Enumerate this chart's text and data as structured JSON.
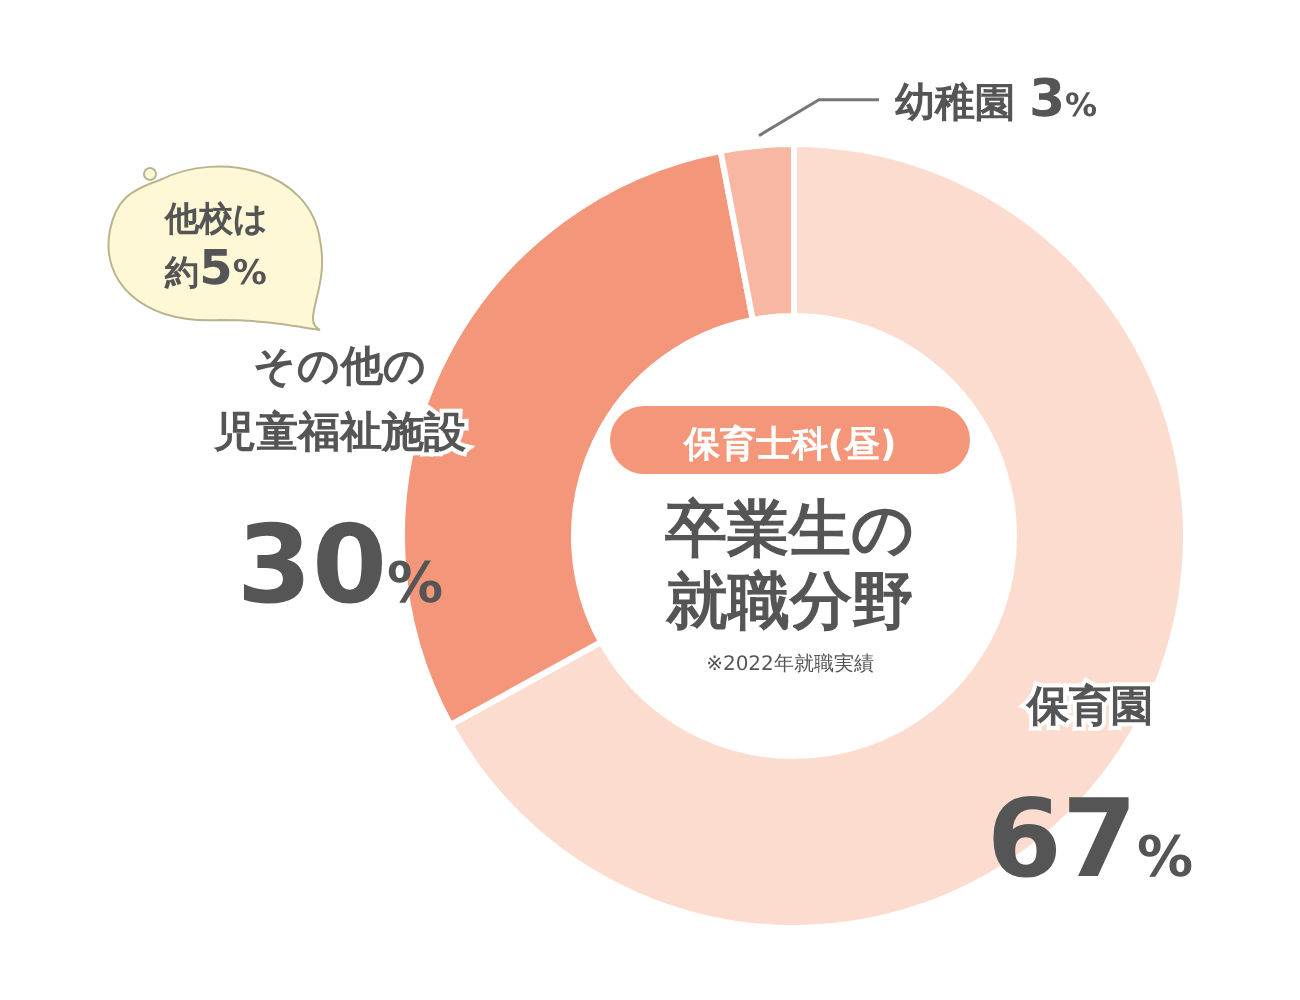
{
  "chart_data": {
    "type": "donut",
    "title": "卒業生の就職分野",
    "subtitle": "保育士科(昼)",
    "categories": [
      "保育園",
      "その他の児童福祉施設",
      "幼稚園"
    ],
    "values": [
      67,
      30,
      3
    ],
    "value_labels": [
      "67%",
      "30%",
      "3%"
    ],
    "colors": [
      "#fcdccf",
      "#f4967a",
      "#f7b7a3"
    ],
    "annotations": [
      "※2022年就職実績",
      "他校は約5%"
    ]
  }
}
